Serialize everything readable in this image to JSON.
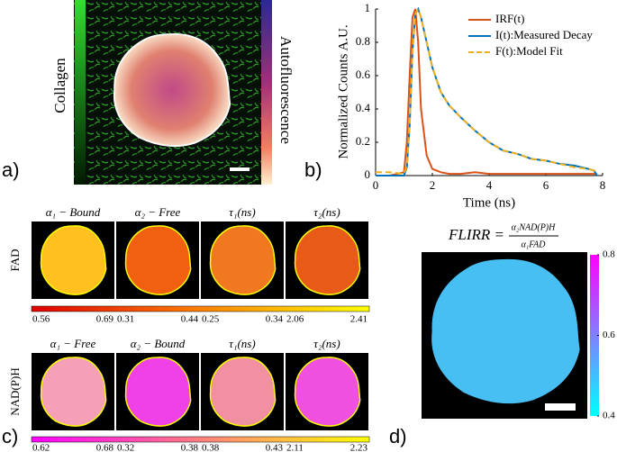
{
  "panel_labels": [
    "a)",
    "b)",
    "c)",
    "d)"
  ],
  "panel_a": {
    "left_label": "Collagen",
    "right_label": "Autofluorescence"
  },
  "chart_data": {
    "type": "line",
    "xlabel": "Time (ns)",
    "ylabel": "Normalized Counts A.U.",
    "x": [
      0,
      0.5,
      1,
      1.1,
      1.2,
      1.3,
      1.4,
      1.5,
      1.6,
      1.8,
      2,
      2.3,
      2.6,
      3,
      3.5,
      4,
      4.5,
      5,
      5.5,
      6,
      6.5,
      7,
      7.5,
      7.7,
      7.8
    ],
    "series": [
      {
        "name": "IRF(t)",
        "color": "#d95319",
        "dash": false,
        "values": [
          0,
          0,
          0.02,
          0.2,
          0.6,
          0.95,
          1,
          0.8,
          0.4,
          0.12,
          0.04,
          0.02,
          0.01,
          0.01,
          0.02,
          0.01,
          0.01,
          0.01,
          0.01,
          0.01,
          0.01,
          0.01,
          0.01,
          0.01,
          0.01
        ]
      },
      {
        "name": "I(t):Measured Decay",
        "color": "#0072bd",
        "dash": false,
        "values": [
          0,
          0,
          0,
          0.05,
          0.3,
          0.75,
          0.97,
          1,
          0.95,
          0.8,
          0.65,
          0.5,
          0.42,
          0.35,
          0.27,
          0.2,
          0.15,
          0.13,
          0.1,
          0.09,
          0.07,
          0.06,
          0.04,
          0.03,
          0
        ]
      },
      {
        "name": "F(t):Model Fit",
        "color": "#edb120",
        "dash": true,
        "values": [
          0.02,
          0.02,
          0.01,
          0.06,
          0.3,
          0.75,
          0.97,
          1,
          0.95,
          0.8,
          0.65,
          0.5,
          0.42,
          0.35,
          0.27,
          0.2,
          0.15,
          0.13,
          0.1,
          0.09,
          0.07,
          0.05,
          0.04,
          0.03,
          0.02
        ]
      }
    ],
    "xlim": [
      0,
      8
    ],
    "xticks": [
      0,
      2,
      4,
      6,
      8
    ],
    "ylim": [
      0,
      1
    ],
    "yticks": [
      0,
      0.2,
      0.4,
      0.6,
      0.8,
      1
    ]
  },
  "panel_c": {
    "rows": [
      {
        "label": "FAD",
        "titles": [
          "α₁ − Bound",
          "α₂ − Free",
          "τ₁(ns)",
          "τ₂(ns)"
        ],
        "ranges": [
          [
            0.56,
            0.69
          ],
          [
            0.31,
            0.44
          ],
          [
            0.25,
            0.34
          ],
          [
            2.06,
            2.41
          ]
        ]
      },
      {
        "label": "NAD(P)H",
        "titles": [
          "α₁ − Free",
          "α₂ − Bound",
          "τ₁(ns)",
          "τ₂(ns)"
        ],
        "ranges": [
          [
            0.62,
            0.68
          ],
          [
            0.32,
            0.38
          ],
          [
            0.38,
            0.43
          ],
          [
            2.11,
            2.23
          ]
        ]
      }
    ]
  },
  "panel_d": {
    "title": "FLIRR =",
    "numerator": "α₂NAD(P)H",
    "denominator": "α₁FAD",
    "clim": [
      0.4,
      0.8
    ],
    "colorbar_ticks": [
      0.4,
      0.6,
      0.8
    ]
  }
}
